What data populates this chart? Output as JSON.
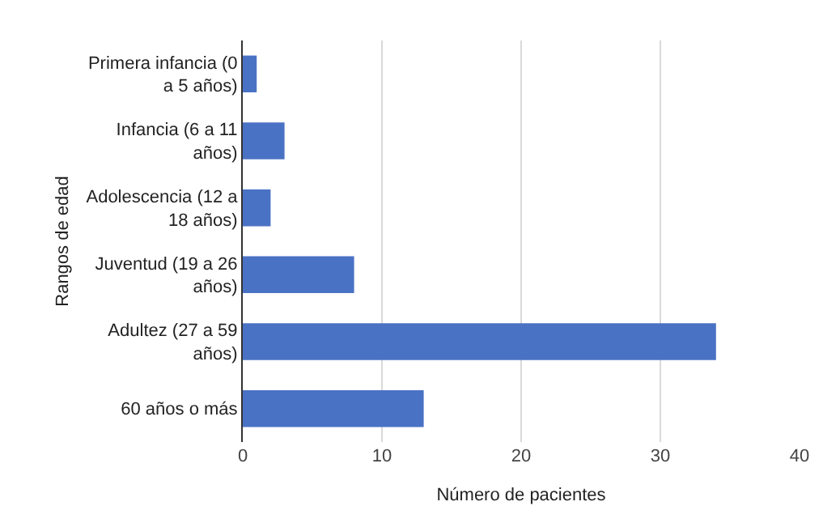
{
  "chart_data": {
    "type": "bar",
    "orientation": "horizontal",
    "categories": [
      "Primera infancia (0 a 5 años)",
      "Infancia (6 a 11 años)",
      "Adolescencia (12 a 18 años)",
      "Juventud (19 a 26 años)",
      "Adultez (27 a 59 años)",
      "60 años o más"
    ],
    "values": [
      1,
      3,
      2,
      8,
      34,
      13
    ],
    "color": "#4a72c4",
    "xlim": [
      0,
      40
    ],
    "xticks": [
      0,
      10,
      20,
      30,
      40
    ],
    "grid": "x",
    "xlabel": "Número de pacientes",
    "ylabel": "Rangos de edad"
  }
}
